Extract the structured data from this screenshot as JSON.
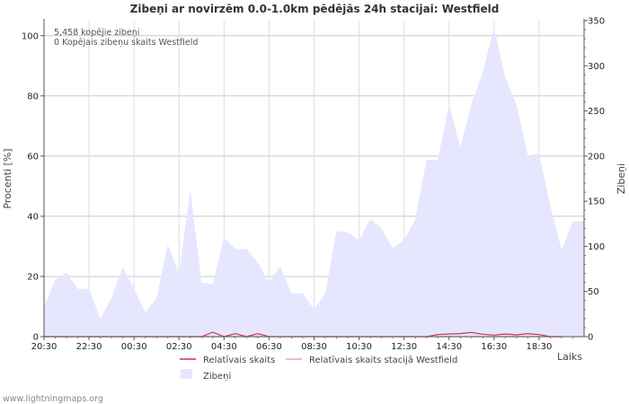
{
  "chart_data": {
    "type": "area",
    "title": "Zibeņi ar novirzēm 0.0-1.0km pēdējās 24h stacijai: Westfield",
    "annotations": [
      "5,458 kopējie zibeņi",
      "0 Kopējais zibeņu skaits Westfield"
    ],
    "xlabel": "Laiks",
    "ylabel_left": "Procenti   [%]",
    "ylabel_right": "Zibeņi",
    "x_tick_labels": [
      "20:30",
      "22:30",
      "00:30",
      "02:30",
      "04:30",
      "06:30",
      "08:30",
      "10:30",
      "12:30",
      "14:30",
      "16:30",
      "18:30"
    ],
    "y_left_ticks": [
      0,
      20,
      40,
      60,
      80,
      100
    ],
    "y_right_ticks": [
      0,
      50,
      100,
      150,
      200,
      250,
      300,
      350
    ],
    "ylim_left": [
      0,
      105
    ],
    "ylim_right": [
      0,
      350
    ],
    "hours_span": 24,
    "series": [
      {
        "name": "Zibeņi",
        "axis": "right",
        "color": "#e6e6ff",
        "x_hours": [
          0,
          0.5,
          1,
          1.5,
          2,
          2.5,
          3,
          3.5,
          4,
          4.5,
          5,
          5.5,
          6,
          6.5,
          7,
          7.5,
          8,
          8.5,
          9,
          9.5,
          10,
          10.5,
          11,
          11.5,
          12,
          12.5,
          13,
          13.5,
          14,
          14.5,
          15,
          15.5,
          16,
          16.5,
          17,
          17.5,
          18,
          18.5,
          19,
          19.5,
          20,
          20.5,
          21,
          21.5,
          22,
          22.5,
          23,
          23.5,
          24
        ],
        "values": [
          33,
          63,
          71,
          53,
          53,
          20,
          43,
          77,
          53,
          27,
          42,
          102,
          70,
          163,
          60,
          58,
          110,
          97,
          97,
          82,
          60,
          78,
          48,
          48,
          30,
          48,
          117,
          115,
          107,
          130,
          120,
          98,
          107,
          130,
          196,
          196,
          257,
          210,
          258,
          293,
          343,
          287,
          257,
          200,
          203,
          145,
          96,
          128,
          128
        ]
      },
      {
        "name": "Relatīvais skaits",
        "axis": "left",
        "color": "#cc3344",
        "x_hours": [
          0,
          2,
          4,
          6,
          7,
          7.5,
          8,
          8.5,
          9,
          9.5,
          10,
          12,
          16,
          17,
          17.5,
          18,
          18.5,
          19,
          19.5,
          20,
          20.5,
          21,
          21.5,
          22,
          22.5,
          23
        ],
        "values": [
          0,
          0,
          0,
          0,
          0,
          1.5,
          0,
          1,
          0,
          1,
          0,
          0,
          0,
          0,
          0.7,
          0.9,
          1,
          1.4,
          0.8,
          0.5,
          0.9,
          0.6,
          1,
          0.7,
          0,
          0
        ]
      },
      {
        "name": "Relatīvais skaits stacijā Westfield",
        "axis": "left",
        "color": "#f0a0b0",
        "x_hours": [
          0,
          23
        ],
        "values": [
          0,
          0
        ]
      }
    ],
    "legend": [
      "Relatīvais skaits",
      "Relatīvais skaits stacijā Westfield",
      "Zibeņi"
    ]
  },
  "footer": {
    "credit": "www.lightningmaps.org"
  }
}
